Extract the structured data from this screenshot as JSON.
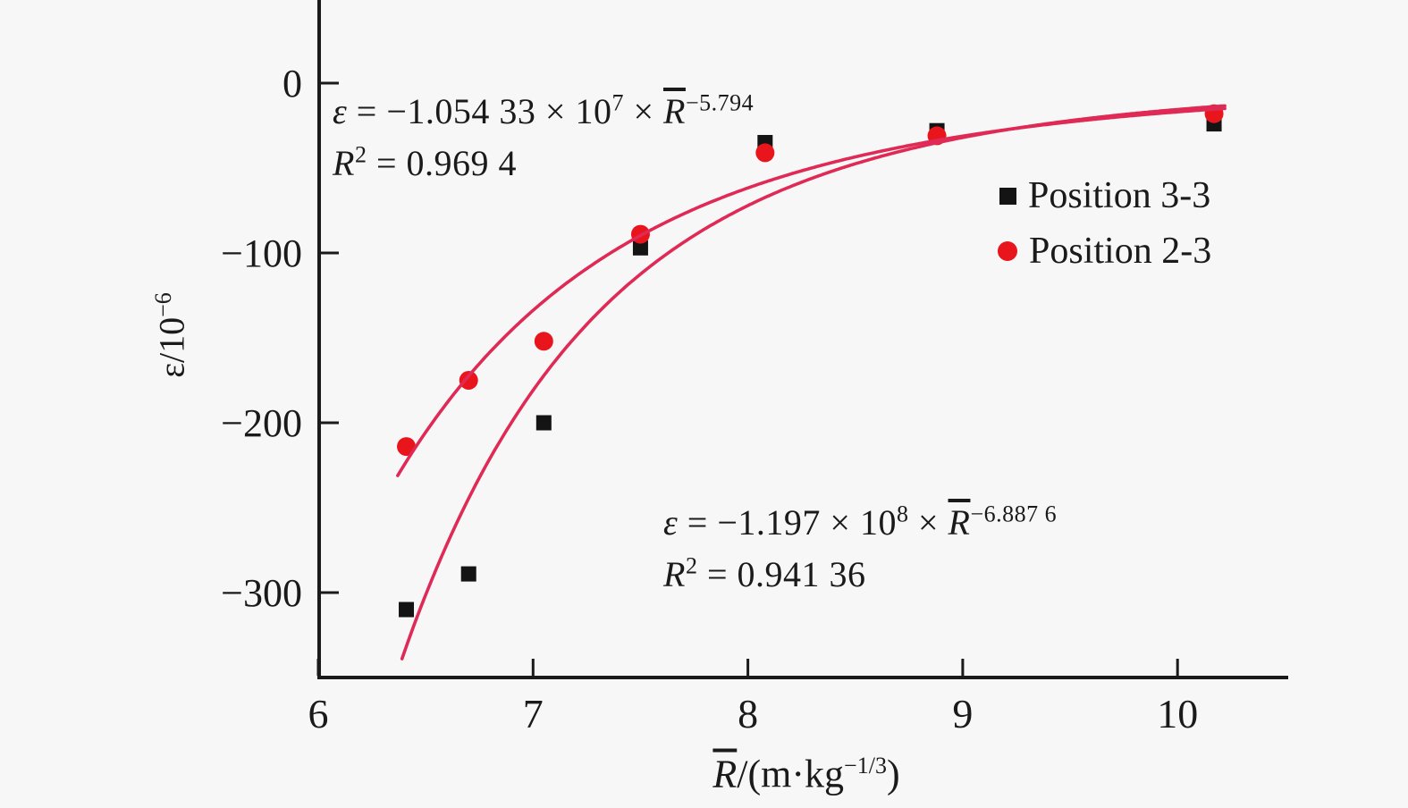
{
  "figure": {
    "background": "#f7f7f7",
    "axis_color": "#1a1a1a",
    "curve_color": "#e02a56",
    "marker_red": "#e8151d",
    "marker_black": "#141414"
  },
  "chart_data": {
    "type": "scatter",
    "title": "",
    "xlabel": "R̄/(m·kg−1/3)",
    "ylabel": "ε/10−6",
    "xlim": [
      6,
      10.52
    ],
    "ylim": [
      -350,
      49
    ],
    "grid": false,
    "legend_position": "upper-right-inside",
    "x_ticks": [
      6,
      7,
      8,
      9,
      10
    ],
    "x_tick_labels": [
      "6",
      "7",
      "8",
      "9",
      "10"
    ],
    "y_ticks": [
      0,
      -100,
      -200,
      -300
    ],
    "y_tick_labels": [
      "0",
      "−100",
      "−200",
      "−300"
    ],
    "series": [
      {
        "name": "Position 3-3",
        "marker": "square",
        "color": "#141414",
        "points": [
          [
            6.41,
            -310
          ],
          [
            6.7,
            -289
          ],
          [
            7.05,
            -200
          ],
          [
            7.5,
            -97
          ],
          [
            8.08,
            -35
          ],
          [
            8.88,
            -28
          ],
          [
            10.17,
            -24
          ]
        ]
      },
      {
        "name": "Position 2-3",
        "marker": "circle",
        "color": "#e8151d",
        "points": [
          [
            6.41,
            -214
          ],
          [
            6.7,
            -175
          ],
          [
            7.05,
            -152
          ],
          [
            7.5,
            -89
          ],
          [
            8.08,
            -41
          ],
          [
            8.88,
            -31
          ],
          [
            10.17,
            -18
          ]
        ]
      }
    ],
    "fits": [
      {
        "for": "Position 2-3",
        "equation": "ε = −1.054 33 × 10^7 × R̄^−5.794",
        "r_squared": "0.969 4",
        "coef": -10543300,
        "power": -5.794,
        "domain": [
          6.37,
          10.22
        ],
        "color": "#e02a56"
      },
      {
        "for": "Position 3-3",
        "equation": "ε = −1.197 × 10^8 × R̄^−6.887 6",
        "r_squared": "0.941 36",
        "coef": -119700000,
        "power": -6.8876,
        "domain": [
          6.39,
          10.22
        ],
        "color": "#e02a56"
      }
    ]
  },
  "equations": {
    "red": {
      "eps": "ε",
      "body": " = −1.054 33 × 10",
      "exp1": "7",
      "times": " × ",
      "rbar": "R",
      "exp2": "−5.794",
      "r2a": "R",
      "r2sup": "2",
      "r2b": " = 0.969 4"
    },
    "black": {
      "eps": "ε",
      "body": " = −1.197 × 10",
      "exp1": "8",
      "times": " × ",
      "rbar": "R",
      "exp2": "−6.887 6",
      "r2a": "R",
      "r2sup": "2",
      "r2b": " = 0.941 36"
    }
  },
  "legend": {
    "item1": "Position 3-3",
    "item2": "Position 2-3"
  },
  "axis": {
    "ylabel_eps": "ε",
    "ylabel_rest": "/10",
    "ylabel_sup": "−6",
    "xlabel_rbar": "R",
    "xlabel_rest": "/(m·kg",
    "xlabel_sup": "−1/3",
    "xlabel_close": ")"
  }
}
